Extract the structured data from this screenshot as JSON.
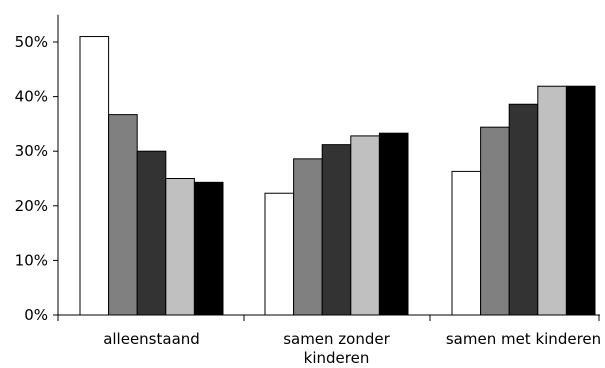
{
  "chart_data": {
    "type": "bar",
    "title": "",
    "xlabel": "",
    "ylabel": "",
    "ylim": [
      0,
      55
    ],
    "yticks": [
      0,
      10,
      20,
      30,
      40,
      50
    ],
    "ytick_labels": [
      "0%",
      "10%",
      "20%",
      "30%",
      "40%",
      "50%"
    ],
    "categories": [
      "alleenstaand",
      "samen zonder kinderen",
      "samen met kinderen"
    ],
    "category_label_lines": [
      [
        "alleenstaand"
      ],
      [
        "samen zonder",
        "kinderen"
      ],
      [
        "samen met kinderen"
      ]
    ],
    "series": [
      {
        "color": "#ffffff",
        "values": [
          51.0,
          22.3,
          26.3
        ]
      },
      {
        "color": "#808080",
        "values": [
          36.7,
          28.6,
          34.4
        ]
      },
      {
        "color": "#333333",
        "values": [
          30.0,
          31.2,
          38.6
        ]
      },
      {
        "color": "#c0c0c0",
        "values": [
          25.0,
          32.8,
          41.9
        ]
      },
      {
        "color": "#000000",
        "values": [
          24.3,
          33.3,
          41.9
        ]
      }
    ],
    "grid": false,
    "legend": "none"
  }
}
